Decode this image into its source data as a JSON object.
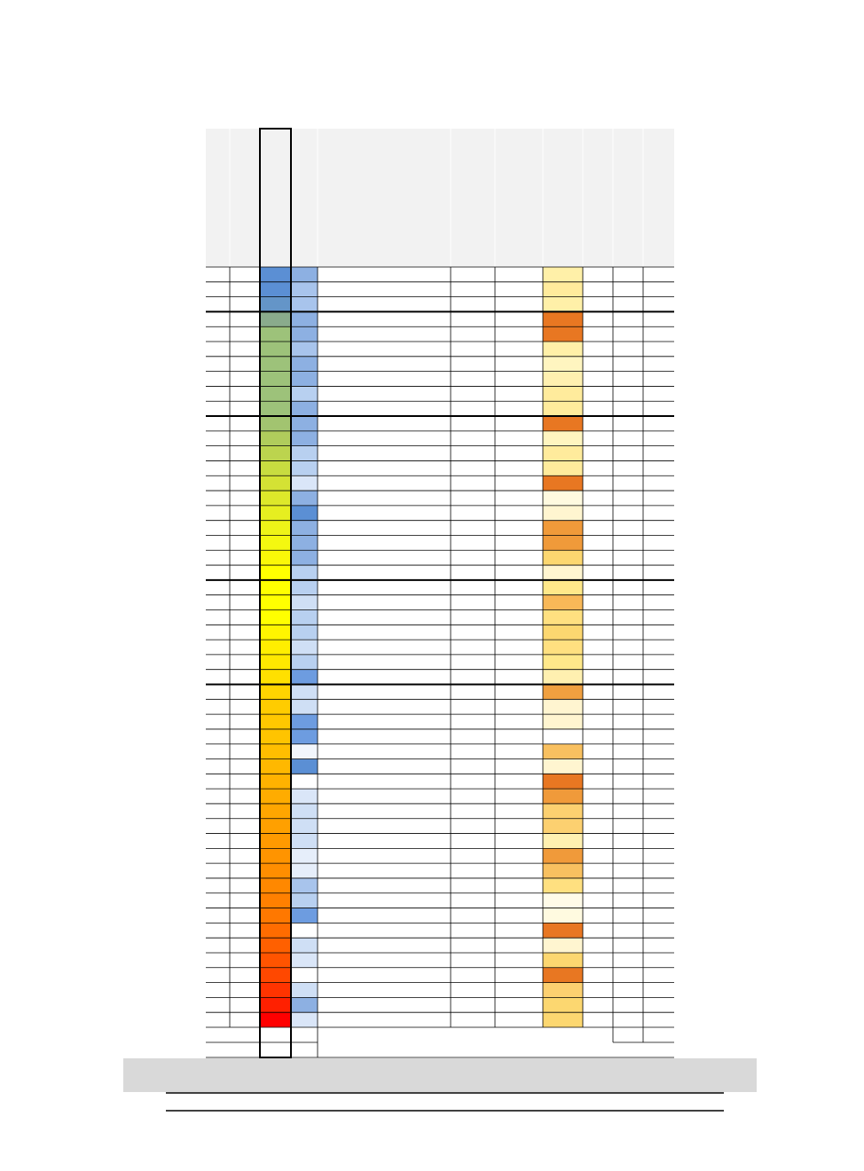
{
  "table": {
    "rows": [
      [
        "#5b8fd4",
        "#8db0e2",
        "#fff0a8"
      ],
      [
        "#5b8fd4",
        "#a8c4ec",
        "#ffeb9c"
      ],
      [
        "#6495c8",
        "#a8c4ec",
        "#fff0a8"
      ],
      [
        "#8aab8c",
        "#8db0e2",
        "#e87722"
      ],
      [
        "#9dc27a",
        "#8db0e2",
        "#e87722"
      ],
      [
        "#9dc27a",
        "#a8c4ec",
        "#fff0a8"
      ],
      [
        "#9dc27a",
        "#8db0e2",
        "#fff5c0"
      ],
      [
        "#9dc27a",
        "#8db0e2",
        "#fff0b0"
      ],
      [
        "#9dc27a",
        "#b8d0f0",
        "#ffeb9c"
      ],
      [
        "#9dc27a",
        "#8db0e2",
        "#ffeb9c"
      ],
      [
        "#a2c470",
        "#8db0e2",
        "#e87722"
      ],
      [
        "#b0cc5c",
        "#8db0e2",
        "#fff5c0"
      ],
      [
        "#bcd44e",
        "#b8d0f0",
        "#ffeb9c"
      ],
      [
        "#c8dc40",
        "#b8d0f0",
        "#ffeb9c"
      ],
      [
        "#d4e234",
        "#dae6f8",
        "#e87722"
      ],
      [
        "#dde82a",
        "#8db0e2",
        "#fffae0"
      ],
      [
        "#e6ee20",
        "#5b8fd4",
        "#fff5d0"
      ],
      [
        "#eef418",
        "#8db0e2",
        "#f09a3a"
      ],
      [
        "#f4f810",
        "#8db0e2",
        "#f09a3a"
      ],
      [
        "#faf808",
        "#8db0e2",
        "#fcd770"
      ],
      [
        "#ffff00",
        "#b8d0f0",
        "#fff5d0"
      ],
      [
        "#ffff00",
        "#b8d0f0",
        "#ffe88a"
      ],
      [
        "#ffff00",
        "#cfdff5",
        "#f8b858"
      ],
      [
        "#ffff00",
        "#b8d0f0",
        "#ffe080"
      ],
      [
        "#fff500",
        "#b8d0f0",
        "#fcd770"
      ],
      [
        "#ffee00",
        "#cfdff5",
        "#ffe080"
      ],
      [
        "#ffe800",
        "#b8d0f0",
        "#ffe88a"
      ],
      [
        "#ffe000",
        "#6d9ce0",
        "#fff0b0"
      ],
      [
        "#ffd400",
        "#cfdff5",
        "#f0a040"
      ],
      [
        "#ffcc00",
        "#cfdff5",
        "#fff5d0"
      ],
      [
        "#ffc800",
        "#6d9ce0",
        "#fff5d0"
      ],
      [
        "#ffc400",
        "#6d9ce0",
        "#ffffff"
      ],
      [
        "#ffbe00",
        "#f2f6fc",
        "#f8c060"
      ],
      [
        "#ffb800",
        "#5b8fd4",
        "#fff5d0"
      ],
      [
        "#ffb200",
        "#ffffff",
        "#e87722"
      ],
      [
        "#ffac00",
        "#dae6f8",
        "#f09a3a"
      ],
      [
        "#ffa600",
        "#cfdff5",
        "#fcd070"
      ],
      [
        "#ffa000",
        "#cfdff5",
        "#fcd070"
      ],
      [
        "#ff9a00",
        "#cfdff5",
        "#fff0b0"
      ],
      [
        "#ff9400",
        "#e6eefa",
        "#f09a3a"
      ],
      [
        "#ff8e00",
        "#e6eefa",
        "#f8c060"
      ],
      [
        "#ff8800",
        "#a8c4ec",
        "#ffe080"
      ],
      [
        "#ff8000",
        "#b8d0f0",
        "#fffbe8"
      ],
      [
        "#ff7800",
        "#6d9ce0",
        "#fffae0"
      ],
      [
        "#ff6c00",
        "#ffffff",
        "#e87722"
      ],
      [
        "#ff6000",
        "#cfdff5",
        "#fff5d0"
      ],
      [
        "#ff5400",
        "#dae6f8",
        "#fcd770"
      ],
      [
        "#ff4800",
        "#ffffff",
        "#e87722"
      ],
      [
        "#ff3400",
        "#cfdff5",
        "#fcd070"
      ],
      [
        "#ff2000",
        "#8db0e2",
        "#fcd770"
      ],
      [
        "#ff0000",
        "#dae6f8",
        "#fcd770"
      ]
    ]
  }
}
